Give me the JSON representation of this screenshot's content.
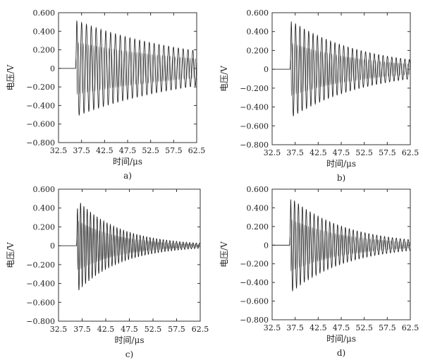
{
  "chart_data": [
    {
      "type": "line",
      "panel_label": "a)",
      "xlabel": "时间/μs",
      "ylabel": "电压/V",
      "xlim": [
        32.5,
        62.5
      ],
      "ylim": [
        -0.8,
        0.6
      ],
      "xticks": [
        "32.5",
        "37.5",
        "42.5",
        "47.5",
        "52.5",
        "57.5",
        "62.5"
      ],
      "yticks": [
        "0.600",
        "0.400",
        "0.200",
        "0",
        "−0.200",
        "−0.400",
        "−0.600",
        "−0.800"
      ],
      "grid": false,
      "signal": {
        "onset": 36.2,
        "period": 1.05,
        "peak_amplitude": 0.52,
        "decay_time": 26,
        "end_amplitude": 0.06
      }
    },
    {
      "type": "line",
      "panel_label": "b)",
      "xlabel": "时间/μs",
      "ylabel": "电压/V",
      "xlim": [
        32.5,
        62.5
      ],
      "ylim": [
        -0.8,
        0.6
      ],
      "xticks": [
        "32.5",
        "37.5",
        "42.5",
        "47.5",
        "52.5",
        "57.5",
        "62.5"
      ],
      "yticks": [
        "0.600",
        "0.400",
        "0.200",
        "0",
        "−0.200",
        "−0.400",
        "−0.600",
        "−0.800"
      ],
      "grid": false,
      "signal": {
        "onset": 36.4,
        "period": 0.95,
        "peak_amplitude": 0.52,
        "decay_time": 16,
        "end_amplitude": 0.02
      }
    },
    {
      "type": "line",
      "panel_label": "c)",
      "xlabel": "时间/μs",
      "ylabel": "电压/V",
      "xlim": [
        32.5,
        62.5
      ],
      "ylim": [
        -0.8,
        0.6
      ],
      "xticks": [
        "32.5",
        "37.5",
        "42.5",
        "47.5",
        "52.5",
        "57.5",
        "62.5"
      ],
      "yticks": [
        "0.600",
        "0.400",
        "0.200",
        "0",
        "−0.200",
        "−0.400",
        "−0.600",
        "−0.800"
      ],
      "grid": false,
      "signal": {
        "onset": 36.3,
        "period": 0.7,
        "peak_amplitude": 0.5,
        "decay_time": 9,
        "end_amplitude": 0.01
      }
    },
    {
      "type": "line",
      "panel_label": "d)",
      "xlabel": "时间/μs",
      "ylabel": "电压/V",
      "xlim": [
        32.5,
        62.5
      ],
      "ylim": [
        -0.8,
        0.6
      ],
      "xticks": [
        "32.5",
        "37.5",
        "42.5",
        "47.5",
        "52.5",
        "57.5",
        "62.5"
      ],
      "yticks": [
        "0.600",
        "0.400",
        "0.200",
        "0",
        "−0.200",
        "−0.400",
        "−0.600",
        "−0.800"
      ],
      "grid": false,
      "signal": {
        "onset": 36.3,
        "period": 0.85,
        "peak_amplitude": 0.52,
        "decay_time": 12,
        "end_amplitude": 0.01
      }
    }
  ]
}
